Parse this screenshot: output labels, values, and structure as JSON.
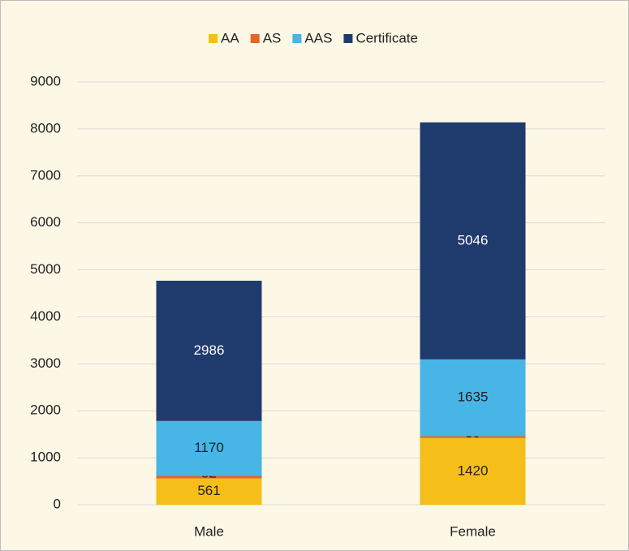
{
  "chart_data": {
    "type": "stacked_bar",
    "categories": [
      "Male",
      "Female"
    ],
    "series": [
      {
        "name": "AA",
        "color": "#f5be19",
        "values": [
          561,
          1420
        ]
      },
      {
        "name": "AS",
        "color": "#e8622a",
        "values": [
          52,
          39
        ]
      },
      {
        "name": "AAS",
        "color": "#47b5e6",
        "values": [
          1170,
          1635
        ]
      },
      {
        "name": "Certificate",
        "color": "#1f3b6e",
        "values": [
          2986,
          5046
        ]
      }
    ],
    "ylim": [
      0,
      9000
    ],
    "yticks": [
      0,
      1000,
      2000,
      3000,
      4000,
      5000,
      6000,
      7000,
      8000,
      9000
    ],
    "grid": true,
    "legend": "top"
  }
}
